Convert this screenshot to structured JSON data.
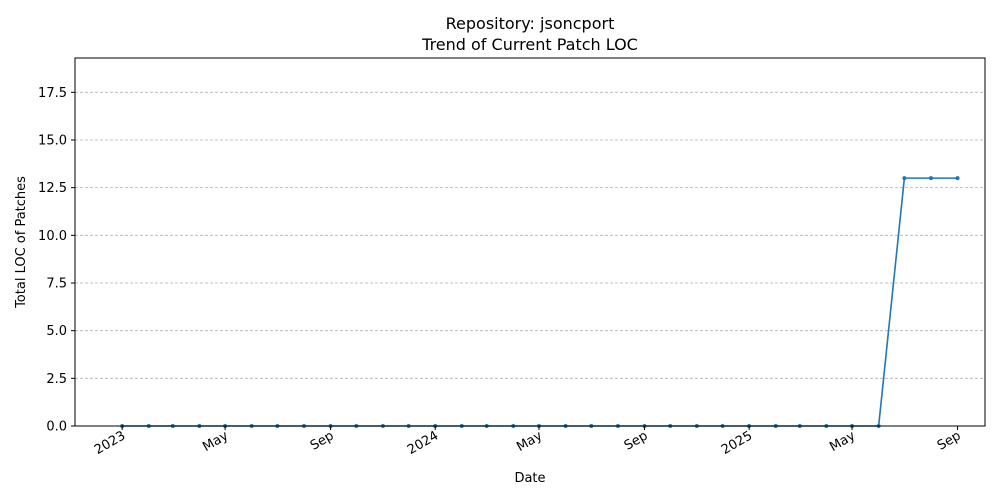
{
  "chart_data": {
    "type": "line",
    "title_line1": "Repository: jsoncport",
    "title_line2": "Trend of Current Patch LOC",
    "xlabel": "Date",
    "ylabel": "Total LOC of Patches",
    "xlim": [
      "2022-11-07",
      "2025-10-03"
    ],
    "ylim": [
      0,
      19.3
    ],
    "yticks": [
      0.0,
      2.5,
      5.0,
      7.5,
      10.0,
      12.5,
      15.0,
      17.5
    ],
    "ytick_labels": [
      "0.0",
      "2.5",
      "5.0",
      "7.5",
      "10.0",
      "12.5",
      "15.0",
      "17.5"
    ],
    "xticks": [
      {
        "date": "2023-01-01",
        "label": "2023"
      },
      {
        "date": "2023-05-01",
        "label": "May"
      },
      {
        "date": "2023-09-01",
        "label": "Sep"
      },
      {
        "date": "2024-01-01",
        "label": "2024"
      },
      {
        "date": "2024-05-01",
        "label": "May"
      },
      {
        "date": "2024-09-01",
        "label": "Sep"
      },
      {
        "date": "2025-01-01",
        "label": "2025"
      },
      {
        "date": "2025-05-01",
        "label": "May"
      },
      {
        "date": "2025-09-01",
        "label": "Sep"
      }
    ],
    "grid": "y-dashed",
    "line_color": "#1f77b4",
    "series": [
      {
        "x": [
          "2023-01-01",
          "2023-02-01",
          "2023-03-01",
          "2023-04-01",
          "2023-05-01",
          "2023-06-01",
          "2023-07-01",
          "2023-08-01",
          "2023-09-01",
          "2023-10-01",
          "2023-11-01",
          "2023-12-01",
          "2024-01-01",
          "2024-02-01",
          "2024-03-01",
          "2024-04-01",
          "2024-05-01",
          "2024-06-01",
          "2024-07-01",
          "2024-08-01",
          "2024-09-01",
          "2024-10-01",
          "2024-11-01",
          "2024-12-01",
          "2025-01-01",
          "2025-02-01",
          "2025-03-01",
          "2025-04-01",
          "2025-05-01",
          "2025-06-01",
          "2025-07-01",
          "2025-08-01",
          "2025-09-01"
        ],
        "y": [
          0,
          0,
          0,
          0,
          0,
          0,
          0,
          0,
          0,
          0,
          0,
          0,
          0,
          0,
          0,
          0,
          0,
          0,
          0,
          0,
          0,
          0,
          0,
          0,
          0,
          0,
          0,
          0,
          0,
          0,
          13,
          13,
          13
        ]
      }
    ]
  }
}
